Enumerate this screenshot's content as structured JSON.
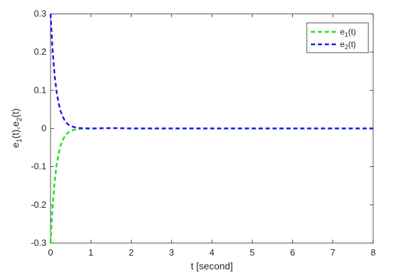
{
  "chart_data": {
    "type": "line",
    "xlabel": "t [second]",
    "ylabel": {
      "base1": "e",
      "sub1": "1",
      "mid": "(t),e",
      "sub2": "2",
      "end": "(t)"
    },
    "xlim": [
      0,
      8
    ],
    "ylim": [
      -0.3,
      0.3
    ],
    "x_ticks": [
      0,
      1,
      2,
      3,
      4,
      5,
      6,
      7,
      8
    ],
    "x_tick_labels": [
      "0",
      "1",
      "2",
      "3",
      "4",
      "5",
      "6",
      "7",
      "8"
    ],
    "y_ticks": [
      -0.3,
      -0.2,
      -0.1,
      0,
      0.1,
      0.2,
      0.3
    ],
    "y_tick_labels": [
      "-0.3",
      "-0.2",
      "-0.1",
      "0",
      "0.1",
      "0.2",
      "0.3"
    ],
    "grid": false,
    "legend_position": "top-right",
    "series": [
      {
        "name": "e1(t)",
        "label": {
          "base": "e",
          "sub": "1",
          "suffix": "(t)"
        },
        "color": "#22dd22",
        "dash": "dashed",
        "x": [
          0,
          0.05,
          0.1,
          0.15,
          0.2,
          0.25,
          0.3,
          0.35,
          0.4,
          0.45,
          0.5,
          0.6,
          0.7,
          0.8,
          1.0,
          1.5,
          2,
          3,
          4,
          5,
          6,
          7,
          8
        ],
        "y": [
          -0.3,
          -0.205,
          -0.14,
          -0.096,
          -0.066,
          -0.045,
          -0.031,
          -0.021,
          -0.014,
          -0.0095,
          -0.0065,
          -0.003,
          -0.0014,
          -0.0006,
          0,
          0.001,
          0,
          0,
          0,
          0,
          0,
          0,
          0
        ]
      },
      {
        "name": "e2(t)",
        "label": {
          "base": "e",
          "sub": "2",
          "suffix": "(t)"
        },
        "color": "#1a1aee",
        "dash": "dashed",
        "x": [
          0,
          0.05,
          0.1,
          0.15,
          0.2,
          0.25,
          0.3,
          0.35,
          0.4,
          0.45,
          0.5,
          0.6,
          0.7,
          0.8,
          1.0,
          1.5,
          2,
          3,
          4,
          5,
          6,
          7,
          8
        ],
        "y": [
          0.3,
          0.205,
          0.14,
          0.096,
          0.066,
          0.045,
          0.031,
          0.021,
          0.014,
          0.0095,
          0.0065,
          0.003,
          0.0014,
          0.0006,
          0,
          0.001,
          0,
          0,
          0,
          0,
          0,
          0,
          0
        ]
      }
    ]
  }
}
